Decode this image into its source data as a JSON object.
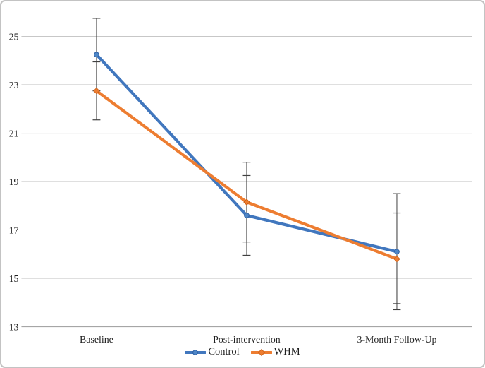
{
  "chart_data": {
    "type": "line",
    "title": "",
    "xlabel": "",
    "ylabel": "",
    "categories": [
      "Baseline",
      "Post-intervention",
      "3-Month Follow-Up"
    ],
    "series": [
      {
        "name": "Control",
        "color": "#4177be",
        "marker": "circle",
        "marker_fill": "#4e86c6",
        "marker_stroke": "#2e5fa3",
        "values": [
          24.25,
          17.6,
          16.1
        ],
        "error_upper": [
          25.75,
          19.25,
          18.5
        ],
        "error_lower": [
          22.75,
          15.95,
          13.7
        ]
      },
      {
        "name": "WHM",
        "color": "#ed7d31",
        "marker": "diamond",
        "marker_fill": "#ed7d31",
        "marker_stroke": "#c55a11",
        "values": [
          22.75,
          18.15,
          15.8
        ],
        "error_upper": [
          23.95,
          19.8,
          17.7
        ],
        "error_lower": [
          21.55,
          16.5,
          13.95
        ]
      }
    ],
    "y_ticks": [
      25,
      23,
      21,
      19,
      17,
      15,
      13
    ],
    "ylim": [
      13,
      26
    ],
    "grid": true,
    "grid_color": "#bfbfbf",
    "axis_line_color": "#a6a6a6",
    "error_bar_color": "#404040",
    "text_color": "#1f1f1f",
    "legend_position": "bottom"
  }
}
